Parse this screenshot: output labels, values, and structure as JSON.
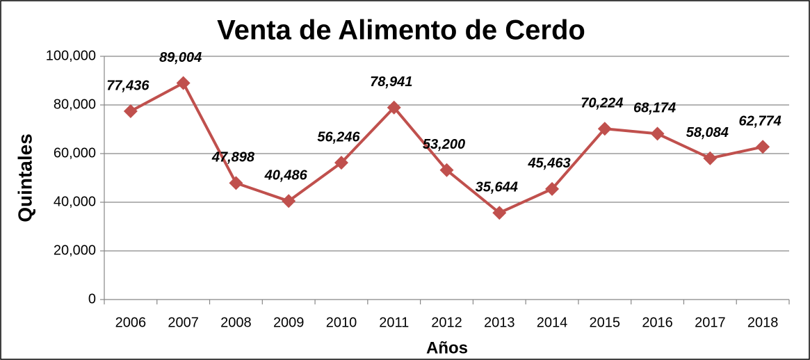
{
  "chart_data": {
    "type": "line",
    "title": "Venta de Alimento de Cerdo",
    "xlabel": "Años",
    "ylabel": "Quintales",
    "categories": [
      "2006",
      "2007",
      "2008",
      "2009",
      "2010",
      "2011",
      "2012",
      "2013",
      "2014",
      "2015",
      "2016",
      "2017",
      "2018"
    ],
    "values": [
      77436,
      89004,
      47898,
      40486,
      56246,
      78941,
      53200,
      35644,
      45463,
      70224,
      68174,
      58084,
      62774
    ],
    "value_labels": [
      "77,436",
      "89,004",
      "47,898",
      "40,486",
      "56,246",
      "78,941",
      "53,200",
      "35,644",
      "45,463",
      "70,224",
      "68,174",
      "58,084",
      "62,774"
    ],
    "color": "#c0504d",
    "ylim": [
      0,
      100000
    ],
    "yticks": [
      0,
      {
        "value": 20000,
        "label": "20,000"
      },
      {
        "value": 40000,
        "label": "40,000"
      },
      {
        "value": 60000,
        "label": "60,000"
      },
      {
        "value": 80000,
        "label": "80,000"
      },
      {
        "value": 100000,
        "label": "100,000"
      }
    ],
    "grid": true
  }
}
